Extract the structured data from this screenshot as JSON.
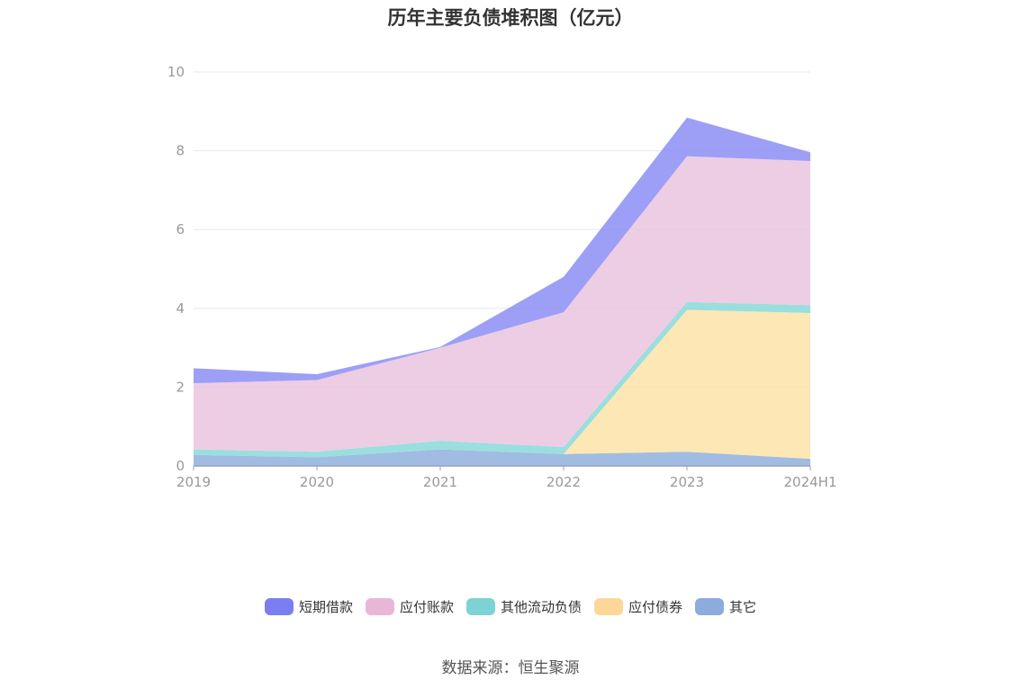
{
  "chart_data": {
    "type": "area",
    "stacked": true,
    "title": "历年主要负债堆积图（亿元）",
    "categories": [
      "2019",
      "2020",
      "2021",
      "2022",
      "2023",
      "2024H1"
    ],
    "ylim": [
      0,
      10
    ],
    "yticks": [
      0,
      2,
      4,
      6,
      8,
      10
    ],
    "grid": true,
    "legend_position": "bottom",
    "series": [
      {
        "name": "其它",
        "color": "#8fb0dd",
        "values": [
          0.28,
          0.22,
          0.42,
          0.3,
          0.36,
          0.18
        ]
      },
      {
        "name": "应付债券",
        "color": "#fde3a7",
        "values": [
          0,
          0,
          0,
          0,
          3.6,
          3.7
        ]
      },
      {
        "name": "其他流动负债",
        "color": "#8ad8d8",
        "values": [
          0.14,
          0.14,
          0.22,
          0.18,
          0.2,
          0.2
        ]
      },
      {
        "name": "应付账款",
        "color": "#eac4df",
        "values": [
          1.68,
          1.82,
          2.36,
          3.42,
          3.7,
          3.66
        ]
      },
      {
        "name": "短期借款",
        "color": "#8c8ef5",
        "values": [
          0.38,
          0.15,
          0.02,
          0.9,
          0.98,
          0.22
        ]
      }
    ],
    "legend_order": [
      "短期借款",
      "应付账款",
      "其他流动负债",
      "应付债券",
      "其它"
    ],
    "legend_colors": {
      "短期借款": "#7b7ef0",
      "应付账款": "#e8b7d8",
      "其他流动负债": "#7dd3d3",
      "应付债券": "#fdd79a",
      "其它": "#8cacdc"
    }
  },
  "source_text": "数据来源：恒生聚源"
}
